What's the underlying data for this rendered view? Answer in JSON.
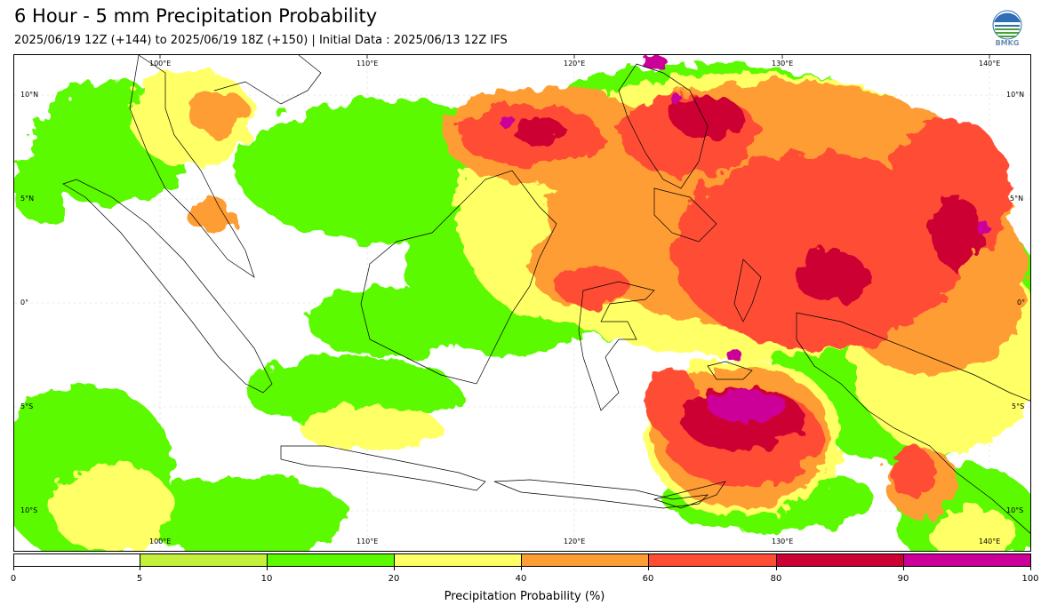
{
  "header": {
    "title": "6 Hour - 5 mm Precipitation Probability",
    "subtitle": "2025/06/19 12Z (+144) to 2025/06/19 18Z (+150) | Initial Data : 2025/06/13 12Z IFS",
    "logo_text": "BMKG"
  },
  "map": {
    "lon_labels_top": [
      "100°E",
      "110°E",
      "120°E",
      "130°E",
      "140°E"
    ],
    "lon_labels_bottom": [
      "100°E",
      "110°E",
      "120°E",
      "130°E",
      "140°E"
    ],
    "lat_labels_left": [
      "10°N",
      "5°N",
      "0°",
      "5°S",
      "10°S"
    ],
    "lat_labels_right": [
      "10°N",
      "5°N",
      "0°",
      "5°S",
      "10°S"
    ]
  },
  "colorbar": {
    "ticks": [
      "0",
      "5",
      "10",
      "20",
      "40",
      "60",
      "80",
      "90",
      "100"
    ],
    "colors": [
      "#ffffff",
      "#c4ef3a",
      "#5cfa00",
      "#ffff66",
      "#ff9d35",
      "#ff4d35",
      "#cc0033",
      "#cc0099"
    ],
    "label": "Precipitation Probability (%)"
  }
}
